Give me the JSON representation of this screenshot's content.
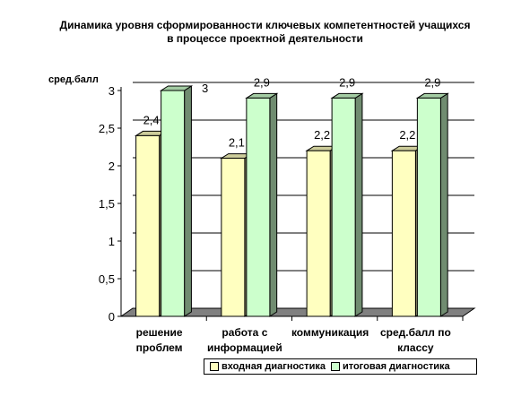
{
  "chart_data": {
    "type": "bar",
    "title": "Динамика уровня сформированности ключевых компетентностей учащихся",
    "subtitle": "в процессе проектной деятельности",
    "ylabel": "сред.балл",
    "xlabel": "",
    "ylim": [
      0,
      3
    ],
    "yticks": [
      "0",
      "0,5",
      "1",
      "1,5",
      "2",
      "2,5",
      "3"
    ],
    "ytick_values": [
      0,
      0.5,
      1,
      1.5,
      2,
      2.5,
      3
    ],
    "grid": true,
    "categories": [
      [
        "решение",
        "проблем"
      ],
      [
        "работа с",
        "информацией"
      ],
      [
        "коммуникация"
      ],
      [
        "сред.балл по",
        "классу"
      ]
    ],
    "series": [
      {
        "name": "входная диагностика",
        "values": [
          2.4,
          2.1,
          2.2,
          2.2
        ],
        "labels": [
          "2,4",
          "2,1",
          "2,2",
          "2,2"
        ],
        "color": "#ffffc0"
      },
      {
        "name": "итоговая диагностика",
        "values": [
          3,
          2.9,
          2.9,
          2.9
        ],
        "labels": [
          "3",
          "2,9",
          "2,9",
          "2,9"
        ],
        "color": "#ccffcc"
      }
    ],
    "legend_position": "bottom"
  }
}
